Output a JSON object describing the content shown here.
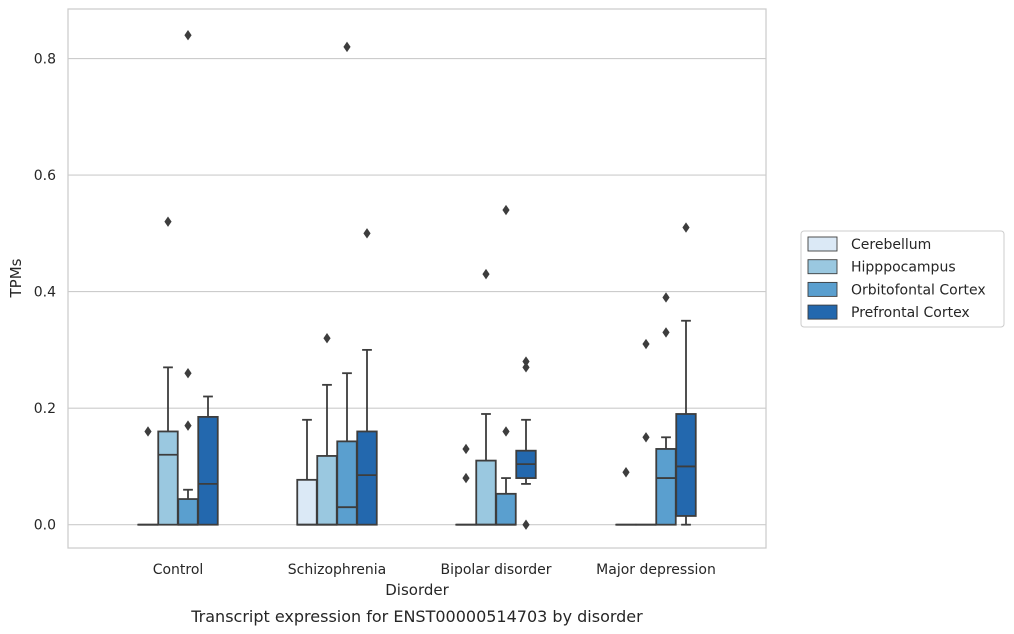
{
  "chart_data": {
    "type": "boxplot",
    "caption": "Transcript expression for ENST00000514703 by disorder",
    "xlabel": "Disorder",
    "ylabel": "TPMs",
    "ylim": [
      -0.04,
      0.885
    ],
    "yticks": [
      0.0,
      0.2,
      0.4,
      0.6,
      0.8
    ],
    "ytick_labels": [
      "0.0",
      "0.2",
      "0.4",
      "0.6",
      "0.8"
    ],
    "grid": "horizontal",
    "legend_position": "right",
    "categories": [
      "Control",
      "Schizophrenia",
      "Bipolar disorder",
      "Major depression"
    ],
    "series": [
      {
        "name": "Cerebellum",
        "color": "#dbe9f6",
        "boxes": [
          {
            "q1": 0.0,
            "median": 0.0,
            "q3": 0.0,
            "whisker_low": 0.0,
            "whisker_high": 0.0,
            "outliers": [
              0.16
            ]
          },
          {
            "q1": 0.0,
            "median": 0.0,
            "q3": 0.077,
            "whisker_low": 0.0,
            "whisker_high": 0.18,
            "outliers": []
          },
          {
            "q1": 0.0,
            "median": 0.0,
            "q3": 0.0,
            "whisker_low": 0.0,
            "whisker_high": 0.0,
            "outliers": [
              0.13,
              0.08
            ]
          },
          {
            "q1": 0.0,
            "median": 0.0,
            "q3": 0.0,
            "whisker_low": 0.0,
            "whisker_high": 0.0,
            "outliers": [
              0.09
            ]
          }
        ]
      },
      {
        "name": "Hipppocampus",
        "color": "#9ac8e0",
        "boxes": [
          {
            "q1": 0.0,
            "median": 0.12,
            "q3": 0.16,
            "whisker_low": 0.0,
            "whisker_high": 0.27,
            "outliers": [
              0.52
            ]
          },
          {
            "q1": 0.0,
            "median": 0.0,
            "q3": 0.118,
            "whisker_low": 0.0,
            "whisker_high": 0.24,
            "outliers": [
              0.32
            ]
          },
          {
            "q1": 0.0,
            "median": 0.0,
            "q3": 0.11,
            "whisker_low": 0.0,
            "whisker_high": 0.19,
            "outliers": [
              0.43
            ]
          },
          {
            "q1": 0.0,
            "median": 0.0,
            "q3": 0.0,
            "whisker_low": 0.0,
            "whisker_high": 0.0,
            "outliers": [
              0.31,
              0.15
            ]
          }
        ]
      },
      {
        "name": "Orbitofontal Cortex",
        "color": "#5a9fcf",
        "boxes": [
          {
            "q1": 0.0,
            "median": 0.0,
            "q3": 0.044,
            "whisker_low": 0.0,
            "whisker_high": 0.06,
            "outliers": [
              0.26,
              0.17,
              0.84
            ]
          },
          {
            "q1": 0.0,
            "median": 0.03,
            "q3": 0.143,
            "whisker_low": 0.0,
            "whisker_high": 0.26,
            "outliers": [
              0.82
            ]
          },
          {
            "q1": 0.0,
            "median": 0.0,
            "q3": 0.053,
            "whisker_low": 0.0,
            "whisker_high": 0.08,
            "outliers": [
              0.54,
              0.16
            ]
          },
          {
            "q1": 0.0,
            "median": 0.08,
            "q3": 0.13,
            "whisker_low": 0.0,
            "whisker_high": 0.15,
            "outliers": [
              0.39,
              0.33
            ]
          }
        ]
      },
      {
        "name": "Prefrontal Cortex",
        "color": "#2368ae",
        "boxes": [
          {
            "q1": 0.0,
            "median": 0.07,
            "q3": 0.185,
            "whisker_low": 0.0,
            "whisker_high": 0.22,
            "outliers": []
          },
          {
            "q1": 0.0,
            "median": 0.085,
            "q3": 0.16,
            "whisker_low": 0.0,
            "whisker_high": 0.3,
            "outliers": [
              0.5
            ]
          },
          {
            "q1": 0.08,
            "median": 0.104,
            "q3": 0.127,
            "whisker_low": 0.07,
            "whisker_high": 0.18,
            "outliers": [
              0.28,
              0.27,
              0.0
            ]
          },
          {
            "q1": 0.015,
            "median": 0.1,
            "q3": 0.19,
            "whisker_low": 0.0,
            "whisker_high": 0.35,
            "outliers": [
              0.51
            ]
          }
        ]
      }
    ]
  }
}
